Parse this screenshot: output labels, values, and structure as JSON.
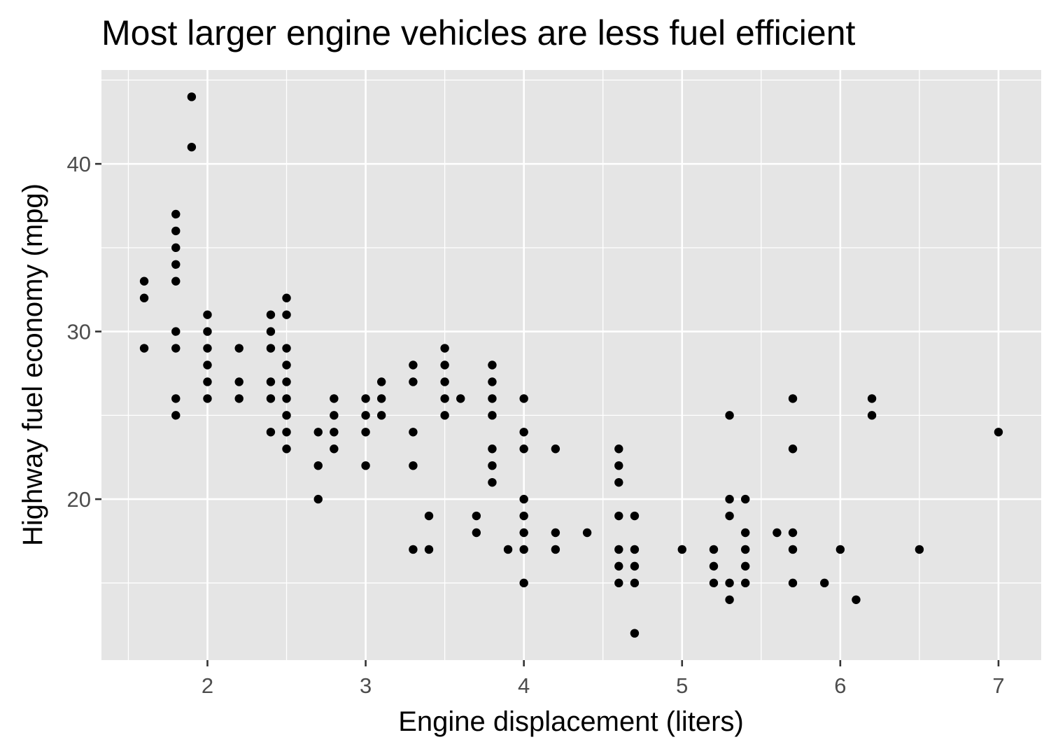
{
  "chart_data": {
    "type": "scatter",
    "title": "Most larger engine vehicles are less fuel efficient",
    "xlabel": "Engine displacement (liters)",
    "ylabel": "Highway fuel economy (mpg)",
    "xlim": [
      1.33,
      7.27
    ],
    "ylim": [
      10.4,
      45.6
    ],
    "x_ticks": [
      2,
      3,
      4,
      5,
      6,
      7
    ],
    "y_ticks": [
      20,
      30,
      40
    ],
    "x_minor_grid": [
      1.5,
      2.5,
      3.5,
      4.5,
      5.5,
      6.5
    ],
    "y_minor_grid": [
      15,
      25,
      35,
      45
    ],
    "grid": true,
    "legend": "none",
    "colors": {
      "panel": "#e5e5e5",
      "grid": "#ffffff",
      "point": "#000000",
      "tick": "#333333"
    },
    "points": [
      [
        1.6,
        33
      ],
      [
        1.6,
        32
      ],
      [
        1.6,
        29
      ],
      [
        1.8,
        37
      ],
      [
        1.8,
        36
      ],
      [
        1.8,
        35
      ],
      [
        1.8,
        34
      ],
      [
        1.8,
        33
      ],
      [
        1.8,
        30
      ],
      [
        1.8,
        29
      ],
      [
        1.8,
        26
      ],
      [
        1.8,
        25
      ],
      [
        1.9,
        44
      ],
      [
        1.9,
        41
      ],
      [
        2.0,
        31
      ],
      [
        2.0,
        30
      ],
      [
        2.0,
        29
      ],
      [
        2.0,
        28
      ],
      [
        2.0,
        27
      ],
      [
        2.0,
        26
      ],
      [
        2.2,
        29
      ],
      [
        2.2,
        27
      ],
      [
        2.2,
        26
      ],
      [
        2.4,
        31
      ],
      [
        2.4,
        30
      ],
      [
        2.4,
        29
      ],
      [
        2.4,
        27
      ],
      [
        2.4,
        26
      ],
      [
        2.4,
        24
      ],
      [
        2.5,
        32
      ],
      [
        2.5,
        31
      ],
      [
        2.5,
        29
      ],
      [
        2.5,
        28
      ],
      [
        2.5,
        27
      ],
      [
        2.5,
        26
      ],
      [
        2.5,
        25
      ],
      [
        2.5,
        24
      ],
      [
        2.5,
        23
      ],
      [
        2.7,
        24
      ],
      [
        2.7,
        22
      ],
      [
        2.7,
        20
      ],
      [
        2.8,
        26
      ],
      [
        2.8,
        25
      ],
      [
        2.8,
        24
      ],
      [
        2.8,
        23
      ],
      [
        3.0,
        26
      ],
      [
        3.0,
        25
      ],
      [
        3.0,
        24
      ],
      [
        3.0,
        22
      ],
      [
        3.1,
        27
      ],
      [
        3.1,
        26
      ],
      [
        3.1,
        25
      ],
      [
        3.3,
        28
      ],
      [
        3.3,
        27
      ],
      [
        3.3,
        24
      ],
      [
        3.3,
        22
      ],
      [
        3.3,
        17
      ],
      [
        3.4,
        19
      ],
      [
        3.4,
        17
      ],
      [
        3.5,
        29
      ],
      [
        3.5,
        28
      ],
      [
        3.5,
        27
      ],
      [
        3.5,
        26
      ],
      [
        3.5,
        25
      ],
      [
        3.6,
        26
      ],
      [
        3.7,
        19
      ],
      [
        3.7,
        18
      ],
      [
        3.8,
        28
      ],
      [
        3.8,
        27
      ],
      [
        3.8,
        26
      ],
      [
        3.8,
        25
      ],
      [
        3.8,
        23
      ],
      [
        3.8,
        22
      ],
      [
        3.8,
        21
      ],
      [
        3.9,
        17
      ],
      [
        4.0,
        26
      ],
      [
        4.0,
        24
      ],
      [
        4.0,
        23
      ],
      [
        4.0,
        20
      ],
      [
        4.0,
        19
      ],
      [
        4.0,
        18
      ],
      [
        4.0,
        17
      ],
      [
        4.0,
        15
      ],
      [
        4.2,
        23
      ],
      [
        4.2,
        18
      ],
      [
        4.2,
        17
      ],
      [
        4.4,
        18
      ],
      [
        4.6,
        23
      ],
      [
        4.6,
        22
      ],
      [
        4.6,
        21
      ],
      [
        4.6,
        19
      ],
      [
        4.6,
        17
      ],
      [
        4.6,
        16
      ],
      [
        4.6,
        15
      ],
      [
        4.7,
        19
      ],
      [
        4.7,
        17
      ],
      [
        4.7,
        16
      ],
      [
        4.7,
        15
      ],
      [
        4.7,
        12
      ],
      [
        5.0,
        17
      ],
      [
        5.2,
        17
      ],
      [
        5.2,
        16
      ],
      [
        5.2,
        15
      ],
      [
        5.3,
        25
      ],
      [
        5.3,
        20
      ],
      [
        5.3,
        19
      ],
      [
        5.3,
        15
      ],
      [
        5.3,
        14
      ],
      [
        5.4,
        20
      ],
      [
        5.4,
        18
      ],
      [
        5.4,
        17
      ],
      [
        5.4,
        16
      ],
      [
        5.4,
        15
      ],
      [
        5.6,
        18
      ],
      [
        5.7,
        26
      ],
      [
        5.7,
        23
      ],
      [
        5.7,
        18
      ],
      [
        5.7,
        17
      ],
      [
        5.7,
        15
      ],
      [
        5.9,
        15
      ],
      [
        6.0,
        17
      ],
      [
        6.1,
        14
      ],
      [
        6.2,
        26
      ],
      [
        6.2,
        25
      ],
      [
        6.5,
        17
      ],
      [
        7.0,
        24
      ]
    ]
  }
}
